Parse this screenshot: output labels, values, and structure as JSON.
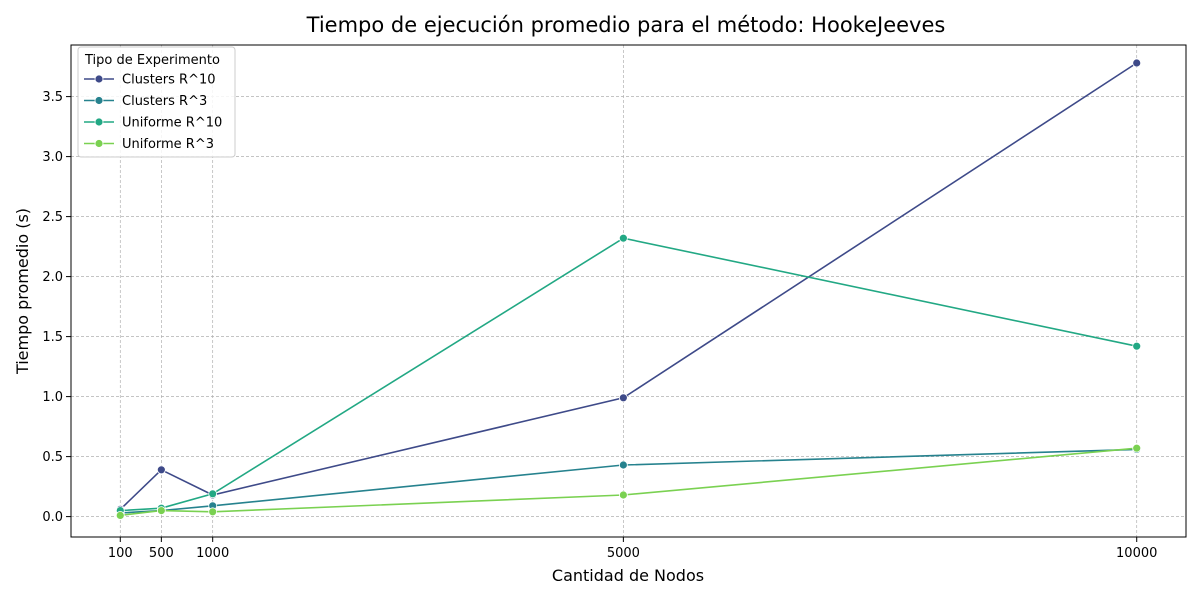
{
  "chart_data": {
    "type": "line",
    "title": "Tiempo de ejecución promedio para el método: HookeJeeves",
    "xlabel": "Cantidad de Nodos",
    "ylabel": "Tiempo promedio (s)",
    "x": [
      100,
      500,
      1000,
      5000,
      10000
    ],
    "xticks": [
      100,
      500,
      1000,
      5000,
      10000
    ],
    "xlim": [
      -380,
      10480
    ],
    "yticks": [
      0.0,
      0.5,
      1.0,
      1.5,
      2.0,
      2.5,
      3.0,
      3.5
    ],
    "ytick_labels": [
      "0.0",
      "0.5",
      "1.0",
      "1.5",
      "2.0",
      "2.5",
      "3.0",
      "3.5"
    ],
    "ylim": [
      -0.17,
      3.93
    ],
    "grid": true,
    "legend": {
      "title": "Tipo de Experimento",
      "placement": "top-left"
    },
    "series": [
      {
        "name": "Clusters R^10",
        "color": "#3e4a89",
        "values": [
          0.06,
          0.39,
          0.18,
          0.99,
          3.78
        ]
      },
      {
        "name": "Clusters R^3",
        "color": "#26828e",
        "values": [
          0.03,
          0.05,
          0.09,
          0.43,
          0.56
        ]
      },
      {
        "name": "Uniforme R^10",
        "color": "#22a884",
        "values": [
          0.05,
          0.07,
          0.19,
          2.32,
          1.42
        ]
      },
      {
        "name": "Uniforme R^3",
        "color": "#7ad151",
        "values": [
          0.01,
          0.05,
          0.04,
          0.18,
          0.57
        ]
      }
    ]
  }
}
